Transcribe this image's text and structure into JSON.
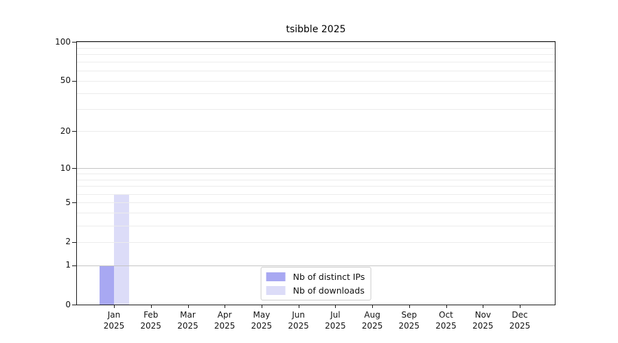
{
  "title": "tsibble 2025",
  "chart_data": {
    "type": "bar",
    "title": "tsibble 2025",
    "categories": [
      {
        "month": "Jan",
        "year": "2025"
      },
      {
        "month": "Feb",
        "year": "2025"
      },
      {
        "month": "Mar",
        "year": "2025"
      },
      {
        "month": "Apr",
        "year": "2025"
      },
      {
        "month": "May",
        "year": "2025"
      },
      {
        "month": "Jun",
        "year": "2025"
      },
      {
        "month": "Jul",
        "year": "2025"
      },
      {
        "month": "Aug",
        "year": "2025"
      },
      {
        "month": "Sep",
        "year": "2025"
      },
      {
        "month": "Oct",
        "year": "2025"
      },
      {
        "month": "Nov",
        "year": "2025"
      },
      {
        "month": "Dec",
        "year": "2025"
      }
    ],
    "series": [
      {
        "name": "Nb of distinct IPs",
        "color": "#a8a8f2",
        "values": [
          1,
          0,
          0,
          0,
          0,
          0,
          0,
          0,
          0,
          0,
          0,
          0
        ]
      },
      {
        "name": "Nb of downloads",
        "color": "#dcdcf8",
        "values": [
          6,
          0,
          0,
          0,
          0,
          0,
          0,
          0,
          0,
          0,
          0,
          0
        ]
      }
    ],
    "y_axis": {
      "scale": "log1p",
      "max": 100,
      "tick_values": [
        0,
        1,
        2,
        5,
        10,
        20,
        50,
        100
      ],
      "tick_labels": [
        "0",
        "1",
        "2",
        "5",
        "10",
        "20",
        "50",
        "100"
      ],
      "major_gridlines": [
        1,
        10,
        100
      ],
      "minor_gridlines": [
        2,
        3,
        4,
        5,
        6,
        7,
        8,
        9,
        20,
        30,
        40,
        50,
        60,
        70,
        80,
        90
      ],
      "major_gridline_color": "#c4c4c4",
      "minor_gridline_color": "#ececec"
    },
    "legend_position": "bottom-center",
    "grid": true
  }
}
